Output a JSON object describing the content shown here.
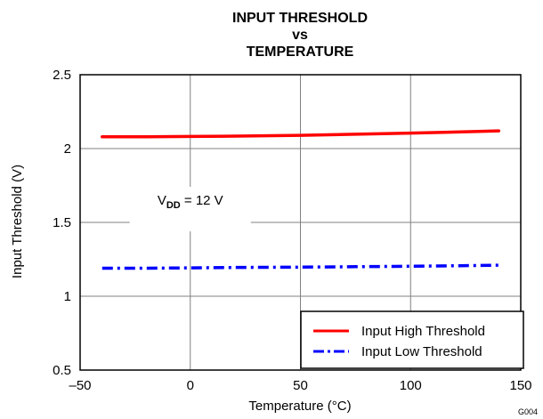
{
  "figure_id": "G004",
  "chart_data": {
    "type": "line",
    "title_lines": [
      "INPUT THRESHOLD",
      "vs",
      "TEMPERATURE"
    ],
    "xlabel": "Temperature (°C)",
    "ylabel": "Input Threshold (V)",
    "xlim": [
      -50,
      150
    ],
    "ylim": [
      0.5,
      2.5
    ],
    "x_ticks": [
      -50,
      0,
      50,
      100,
      150
    ],
    "x_tick_labels": [
      "–50",
      "0",
      "50",
      "100",
      "150"
    ],
    "y_ticks": [
      0.5,
      1,
      1.5,
      2,
      2.5
    ],
    "y_tick_labels": [
      "0.5",
      "1",
      "1.5",
      "2",
      "2.5"
    ],
    "grid": true,
    "legend_position": "bottom-right",
    "annotation": {
      "main": "V",
      "sub": "DD",
      "rest": " = 12 V",
      "x": 0,
      "y": 1.62
    },
    "series": [
      {
        "name": "Input High Threshold",
        "color": "#ff0000",
        "style": "solid",
        "x": [
          -40,
          -20,
          0,
          25,
          50,
          75,
          100,
          125,
          140
        ],
        "y": [
          2.08,
          2.08,
          2.082,
          2.085,
          2.09,
          2.097,
          2.105,
          2.114,
          2.12
        ]
      },
      {
        "name": "Input Low Threshold",
        "color": "#0000ff",
        "style": "dashdot",
        "x": [
          -40,
          -20,
          0,
          25,
          50,
          75,
          100,
          125,
          140
        ],
        "y": [
          1.19,
          1.19,
          1.192,
          1.195,
          1.197,
          1.2,
          1.203,
          1.207,
          1.21
        ]
      }
    ]
  }
}
